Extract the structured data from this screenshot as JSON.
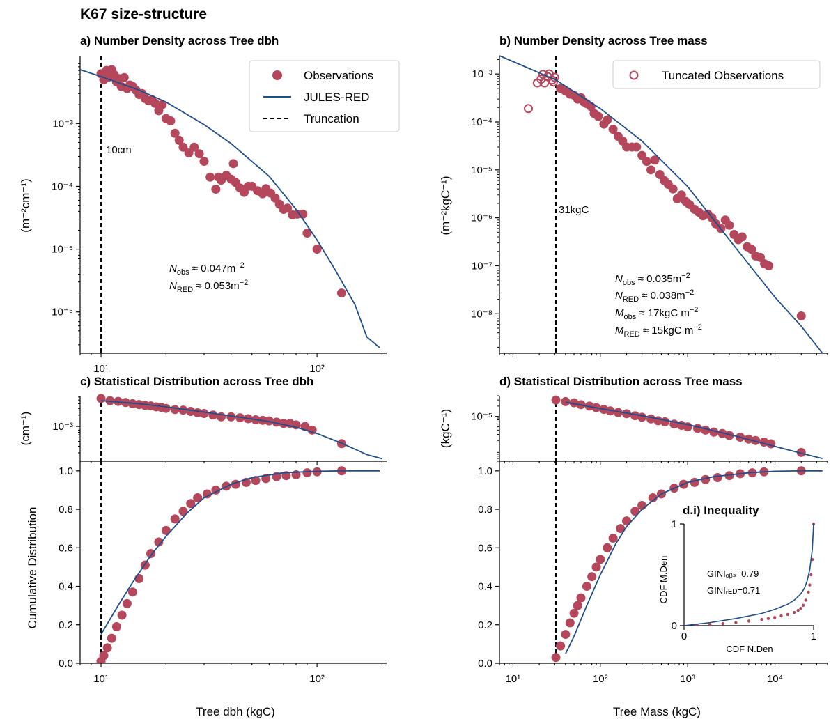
{
  "figure_title": "K67 size-structure",
  "colors": {
    "obs": "#b5475c",
    "model": "#1f4e8c",
    "trunc": "#000000"
  },
  "labels": {
    "a_title": "a) Number Density across Tree dbh",
    "b_title": "b) Number Density across Tree mass",
    "c_title": "c) Statistical Distribution across Tree dbh",
    "d_title": "d) Statistical Distribution across Tree mass",
    "a_ylabel": "(m⁻²cm⁻¹)",
    "b_ylabel": "(m⁻²kgC⁻¹)",
    "c_ylabel": "(cm⁻¹)",
    "d_ylabel": "(kgC⁻¹)",
    "cdf_ylabel": "Cumulative Distribution",
    "xlabel_left": "Tree dbh (kgC)",
    "xlabel_right": "Tree Mass (kgC)",
    "trunc_a": "10cm",
    "trunc_b": "31kgC",
    "legend_a": [
      "Observations",
      "JULES-RED",
      "Truncation"
    ],
    "legend_b": [
      "Tuncated Observations"
    ],
    "inset_title": "d.i) Inequality",
    "inset_xlabel": "CDF N.Den",
    "inset_ylabel": "CDF M.Den",
    "gini_obs": "GINIₒᵦₛ=0.79",
    "gini_red": "GINIᵣᴇᴅ=0.71",
    "ann_a": [
      {
        "sym": "N",
        "sub": "obs",
        "rest": " ≈ 0.047m",
        "sup": "−2",
        "tail": ""
      },
      {
        "sym": "N",
        "sub": "RED",
        "rest": " ≈ 0.053m",
        "sup": "−2",
        "tail": ""
      }
    ],
    "ann_b": [
      {
        "sym": "N",
        "sub": "obs",
        "rest": " ≈ 0.035m",
        "sup": "−2",
        "tail": ""
      },
      {
        "sym": "N",
        "sub": "RED",
        "rest": " ≈ 0.038m",
        "sup": "−2",
        "tail": ""
      },
      {
        "sym": "M",
        "sub": "obs",
        "rest": " ≈ 17kgC m",
        "sup": "−2",
        "tail": ""
      },
      {
        "sym": "M",
        "sub": "RED",
        "rest": " ≈ 15kgC m",
        "sup": "−2",
        "tail": ""
      }
    ]
  },
  "chart_data": [
    {
      "panel": "a",
      "type": "scatter",
      "xscale": "log",
      "yscale": "log",
      "xlim": [
        8,
        210
      ],
      "ylim": [
        2.2e-07,
        0.012
      ],
      "yticks": [
        1e-06,
        1e-05,
        0.0001,
        0.001
      ],
      "ytick_labels": [
        "10⁻⁶",
        "10⁻⁵",
        "10⁻⁴",
        "10⁻³"
      ],
      "xticks": [
        10,
        100
      ],
      "xtick_labels": [
        "10¹",
        "10²"
      ],
      "truncation": 10,
      "series": [
        {
          "name": "Observations",
          "kind": "points",
          "x": [
            10.0,
            10.3,
            10.6,
            10.9,
            11.2,
            11.5,
            11.8,
            12.1,
            12.4,
            12.8,
            13.2,
            13.6,
            14.0,
            14.5,
            15.0,
            15.5,
            16.0,
            16.6,
            17.2,
            17.8,
            18.5,
            19.2,
            20,
            21,
            22,
            23,
            24,
            25.5,
            27,
            28.5,
            30,
            32,
            34,
            35,
            36,
            38,
            40,
            41,
            42,
            44,
            46,
            48,
            50,
            53,
            56,
            58,
            61,
            64,
            67,
            70,
            73,
            77,
            81,
            86,
            90,
            100,
            130
          ],
          "y": [
            0.0062,
            0.005,
            0.007,
            0.0055,
            0.0072,
            0.006,
            0.0046,
            0.0052,
            0.0039,
            0.0054,
            0.0036,
            0.0041,
            0.0039,
            0.0034,
            0.0029,
            0.003,
            0.0025,
            0.0023,
            0.0024,
            0.0021,
            0.0016,
            0.002,
            0.0012,
            0.0011,
            0.0007,
            0.00054,
            0.00042,
            0.00034,
            0.00042,
            0.00033,
            0.00025,
            0.00014,
            9e-05,
            0.00014,
            0.000125,
            0.00015,
            0.00013,
            0.00023,
            0.000115,
            9.4e-05,
            8e-05,
            0.0001,
            0.0001,
            8.5e-05,
            7.6e-05,
            9.2e-05,
            7.8e-05,
            6.5e-05,
            5.2e-05,
            4.3e-05,
            4.5e-05,
            3.5e-05,
            3.6e-05,
            3.6e-05,
            1.8e-05,
            1e-05,
            2e-06
          ]
        },
        {
          "name": "JULES-RED",
          "kind": "line",
          "x": [
            8,
            10,
            15,
            20,
            30,
            40,
            60,
            80,
            100,
            120,
            150,
            170,
            195
          ],
          "y": [
            0.0072,
            0.0056,
            0.0034,
            0.0022,
            0.00096,
            0.00048,
            0.000145,
            4.3e-05,
            1.4e-05,
            5e-06,
            1.3e-06,
            4e-07,
            2.7e-07
          ]
        }
      ]
    },
    {
      "panel": "b",
      "type": "scatter",
      "xscale": "log",
      "yscale": "log",
      "xlim": [
        7,
        40000
      ],
      "ylim": [
        1.5e-09,
        0.0024
      ],
      "yticks": [
        1e-08,
        1e-07,
        1e-06,
        1e-05,
        0.0001,
        0.001
      ],
      "ytick_labels": [
        "10⁻⁸",
        "10⁻⁷",
        "10⁻⁶",
        "10⁻⁵",
        "10⁻⁴",
        "10⁻³"
      ],
      "truncation": 31,
      "series": [
        {
          "name": "Tuncated Observations",
          "kind": "open_points",
          "x": [
            15,
            19,
            21,
            22,
            23,
            25,
            26,
            28,
            29,
            30
          ],
          "y": [
            0.00019,
            0.00065,
            0.00078,
            0.00098,
            0.00065,
            0.00088,
            0.001,
            0.00075,
            0.00068,
            0.00085
          ]
        },
        {
          "name": "Observations",
          "kind": "points",
          "x": [
            35,
            40,
            45,
            50,
            55,
            60,
            65,
            70,
            78,
            85,
            95,
            110,
            120,
            140,
            160,
            180,
            200,
            230,
            260,
            300,
            340,
            380,
            420,
            480,
            540,
            600,
            680,
            760,
            850,
            950,
            1050,
            1200,
            1350,
            1500,
            1700,
            1900,
            2100,
            2400,
            2700,
            3000,
            3400,
            3800,
            4200,
            4800,
            5400,
            6000,
            6800,
            7600,
            8500
          ],
          "y": [
            0.0005,
            0.00044,
            0.00038,
            0.00036,
            0.0003,
            0.00032,
            0.00026,
            0.00024,
            0.00021,
            0.00015,
            0.00013,
            9e-05,
            0.00011,
            7e-05,
            5e-05,
            4e-05,
            3e-05,
            3e-05,
            3e-05,
            2e-05,
            1.5e-05,
            1e-05,
            1.6e-05,
            8e-06,
            6e-06,
            5e-06,
            4e-06,
            2.5e-06,
            3e-06,
            2.2e-06,
            1.9e-06,
            1.5e-06,
            1.3e-06,
            1.1e-06,
            1.2e-06,
            1e-06,
            7.5e-07,
            6e-07,
            9e-07,
            7e-07,
            4.5e-07,
            3.5e-07,
            4e-07,
            2.5e-07,
            2.2e-07,
            1.6e-07,
            1.5e-07,
            1.1e-07,
            1e-07
          ]
        },
        {
          "name": "Observations",
          "kind": "points",
          "x": [
            20000
          ],
          "y": [
            9e-09
          ]
        },
        {
          "name": "JULES-RED",
          "kind": "line",
          "x": [
            7,
            31,
            100,
            300,
            1000,
            3000,
            10000,
            20000,
            35000
          ],
          "y": [
            0.0024,
            0.00075,
            0.00019,
            4e-05,
            4.5e-06,
            3.5e-07,
            2.2e-08,
            5.5e-09,
            1.5e-09
          ]
        }
      ]
    },
    {
      "panel": "c",
      "type": "scatter",
      "xscale": "log",
      "yscale": "log",
      "xlim": [
        8,
        210
      ],
      "ylim": [
        0.00012,
        0.0065
      ],
      "yticks": [
        0.001
      ],
      "ytick_labels": [
        "10⁻³"
      ],
      "truncation": 10,
      "series": [
        {
          "name": "Observations",
          "kind": "points",
          "x": [
            10,
            11,
            12,
            13,
            14,
            15,
            16,
            17,
            18,
            19,
            20,
            22,
            24,
            26,
            28,
            30,
            33,
            36,
            40,
            44,
            48,
            52,
            56,
            60,
            65,
            70,
            75,
            80,
            88,
            95,
            130
          ],
          "y": [
            0.0055,
            0.0048,
            0.0046,
            0.0043,
            0.004,
            0.0038,
            0.0036,
            0.0035,
            0.0033,
            0.0032,
            0.003,
            0.0028,
            0.0027,
            0.0025,
            0.0023,
            0.0022,
            0.002,
            0.0018,
            0.0018,
            0.0017,
            0.0016,
            0.0015,
            0.00145,
            0.0014,
            0.0013,
            0.0012,
            0.0012,
            0.0011,
            0.001,
            0.0008,
            0.00035
          ]
        },
        {
          "name": "JULES-RED",
          "kind": "line",
          "x": [
            10,
            15,
            20,
            30,
            40,
            60,
            80,
            100,
            130,
            170,
            200
          ],
          "y": [
            0.0048,
            0.004,
            0.0033,
            0.0024,
            0.0019,
            0.00135,
            0.00095,
            0.00065,
            0.00036,
            0.00018,
            0.00014
          ]
        }
      ]
    },
    {
      "panel": "c_cdf",
      "type": "scatter",
      "xscale": "log",
      "xlim": [
        8,
        210
      ],
      "ylim": [
        0,
        1.05
      ],
      "yticks": [
        0,
        0.2,
        0.4,
        0.6,
        0.8,
        1.0
      ],
      "ytick_labels": [
        "0.0",
        "0.2",
        "0.4",
        "0.6",
        "0.8",
        "1.0"
      ],
      "xticks": [
        10,
        100
      ],
      "xtick_labels": [
        "10¹",
        "10²"
      ],
      "xlabel": "Tree dbh (kgC)",
      "truncation": 10,
      "series": [
        {
          "name": "Observations",
          "kind": "points",
          "x": [
            10,
            10.3,
            10.7,
            11.2,
            11.8,
            12.5,
            13.2,
            14,
            15,
            16,
            17,
            18.5,
            20,
            22,
            24,
            26,
            28,
            31,
            34,
            38,
            42,
            47,
            52,
            58,
            65,
            72,
            80,
            90,
            100,
            130
          ],
          "y": [
            0.01,
            0.04,
            0.08,
            0.13,
            0.19,
            0.25,
            0.31,
            0.37,
            0.44,
            0.51,
            0.57,
            0.63,
            0.69,
            0.75,
            0.79,
            0.83,
            0.86,
            0.88,
            0.9,
            0.92,
            0.93,
            0.94,
            0.95,
            0.96,
            0.97,
            0.975,
            0.98,
            0.99,
            0.995,
            1.0
          ]
        },
        {
          "name": "JULES-RED",
          "kind": "line",
          "x": [
            10,
            12,
            14,
            17,
            20,
            25,
            30,
            40,
            50,
            70,
            100,
            130,
            195
          ],
          "y": [
            0.15,
            0.3,
            0.42,
            0.56,
            0.66,
            0.78,
            0.86,
            0.93,
            0.965,
            0.99,
            0.998,
            1.0,
            1.0
          ]
        }
      ]
    },
    {
      "panel": "d",
      "type": "scatter",
      "xscale": "log",
      "yscale": "log",
      "xlim": [
        7,
        40000
      ],
      "ylim": [
        5e-07,
        4e-05
      ],
      "yticks": [
        1e-05
      ],
      "ytick_labels": [
        "10⁻⁵"
      ],
      "truncation": 31,
      "series": [
        {
          "name": "Observations",
          "kind": "points",
          "x": [
            31,
            40,
            50,
            60,
            75,
            90,
            110,
            130,
            160,
            200,
            250,
            300,
            380,
            460,
            550,
            700,
            850,
            1000,
            1300,
            1600,
            2000,
            2500,
            3000,
            4000,
            5000,
            6000,
            7500,
            9000,
            20000
          ],
          "y": [
            3e-05,
            2.7e-05,
            2.5e-05,
            2.2e-05,
            2e-05,
            1.8e-05,
            1.6e-05,
            1.45e-05,
            1.3e-05,
            1.2e-05,
            1.05e-05,
            9.5e-06,
            8.5e-06,
            7.5e-06,
            7e-06,
            6e-06,
            5.5e-06,
            5e-06,
            4.5e-06,
            4e-06,
            3.5e-06,
            3.2e-06,
            2.8e-06,
            2.5e-06,
            2.2e-06,
            2e-06,
            1.8e-06,
            1.6e-06,
            9e-07
          ]
        },
        {
          "name": "JULES-RED",
          "kind": "line",
          "x": [
            40,
            100,
            300,
            1000,
            3000,
            10000,
            20000,
            35000
          ],
          "y": [
            2.6e-05,
            1.7e-05,
            1.05e-05,
            5.8e-06,
            3e-06,
            1.35e-06,
            8.5e-07,
            6e-07
          ]
        }
      ]
    },
    {
      "panel": "d_cdf",
      "type": "scatter",
      "xscale": "log",
      "xlim": [
        7,
        40000
      ],
      "ylim": [
        0,
        1.05
      ],
      "yticks": [
        0,
        0.2,
        0.4,
        0.6,
        0.8,
        1.0
      ],
      "ytick_labels": [
        "0.0",
        "0.2",
        "0.4",
        "0.6",
        "0.8",
        "1.0"
      ],
      "xticks": [
        10,
        100,
        1000,
        10000
      ],
      "xtick_labels": [
        "10¹",
        "10²",
        "10³",
        "10⁴"
      ],
      "xlabel": "Tree Mass (kgC)",
      "truncation": 31,
      "series": [
        {
          "name": "Observations",
          "kind": "points",
          "x": [
            31,
            35,
            40,
            45,
            50,
            55,
            60,
            70,
            80,
            90,
            100,
            120,
            140,
            170,
            200,
            250,
            300,
            400,
            500,
            700,
            900,
            1200,
            1600,
            2200,
            3000,
            4000,
            5500,
            7500,
            20000
          ],
          "y": [
            0.03,
            0.09,
            0.15,
            0.21,
            0.26,
            0.3,
            0.34,
            0.4,
            0.45,
            0.5,
            0.54,
            0.6,
            0.65,
            0.7,
            0.74,
            0.79,
            0.82,
            0.86,
            0.88,
            0.91,
            0.93,
            0.94,
            0.955,
            0.965,
            0.975,
            0.985,
            0.99,
            0.995,
            1.0
          ]
        },
        {
          "name": "JULES-RED",
          "kind": "line",
          "x": [
            40,
            50,
            70,
            100,
            150,
            200,
            300,
            500,
            1000,
            2000,
            5000,
            10000,
            20000,
            35000
          ],
          "y": [
            0.05,
            0.14,
            0.3,
            0.46,
            0.62,
            0.71,
            0.8,
            0.88,
            0.94,
            0.97,
            0.99,
            0.998,
            1.0,
            1.0
          ]
        }
      ]
    },
    {
      "panel": "d_inset",
      "type": "line",
      "title": "d.i) Inequality",
      "xlim": [
        0,
        1
      ],
      "ylim": [
        0,
        1
      ],
      "xticks": [
        0,
        1
      ],
      "yticks": [
        0,
        1
      ],
      "xlabel": "CDF N.Den",
      "ylabel": "CDF M.Den",
      "series": [
        {
          "name": "Observations",
          "kind": "points",
          "x": [
            0.0,
            0.1,
            0.2,
            0.3,
            0.4,
            0.5,
            0.6,
            0.65,
            0.7,
            0.75,
            0.8,
            0.85,
            0.88,
            0.9,
            0.92,
            0.94,
            0.96,
            0.97,
            0.98,
            0.99,
            1.0
          ],
          "y": [
            0.0,
            0.005,
            0.012,
            0.02,
            0.03,
            0.045,
            0.06,
            0.07,
            0.08,
            0.095,
            0.11,
            0.13,
            0.15,
            0.17,
            0.2,
            0.25,
            0.33,
            0.4,
            0.5,
            0.65,
            1.0
          ]
        },
        {
          "name": "JULES-RED",
          "kind": "line",
          "x": [
            0.0,
            0.2,
            0.4,
            0.6,
            0.7,
            0.8,
            0.85,
            0.9,
            0.93,
            0.95,
            0.97,
            0.99,
            1.0
          ],
          "y": [
            0.0,
            0.03,
            0.07,
            0.12,
            0.16,
            0.21,
            0.25,
            0.31,
            0.37,
            0.44,
            0.55,
            0.75,
            1.0
          ]
        }
      ]
    }
  ]
}
